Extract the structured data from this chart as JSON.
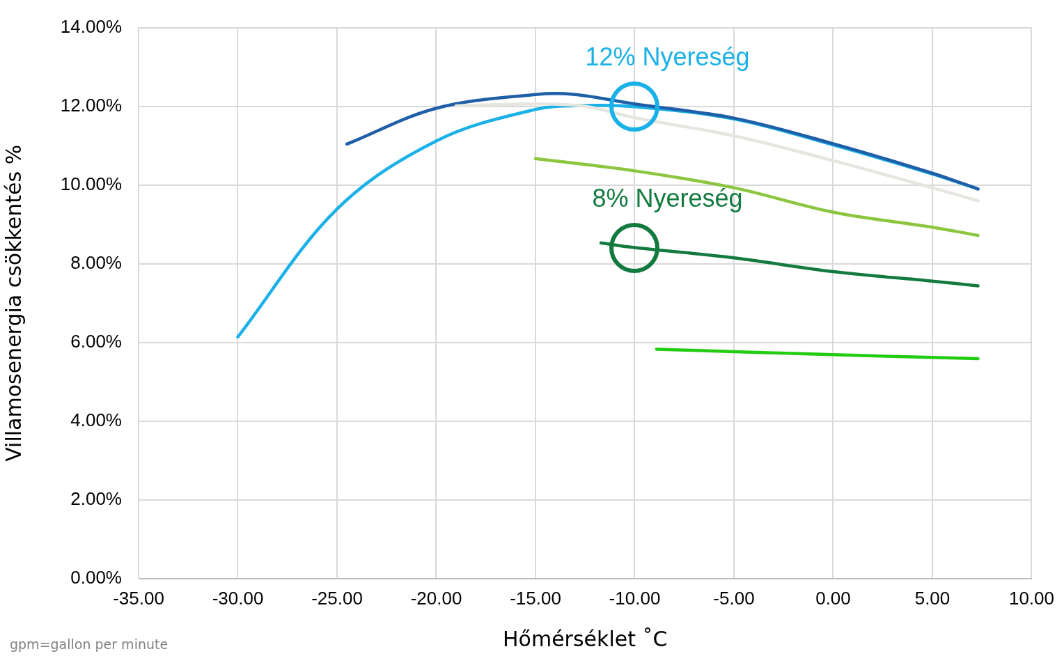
{
  "chart_data": {
    "type": "line",
    "xlabel": "Hőmérséklet ˚C",
    "ylabel": "Villamosenergia csökkentés %",
    "annotations": [
      {
        "text": "12% Nyereség",
        "x": -10,
        "y": 12
      },
      {
        "text": "8% Nyereség",
        "x": -10,
        "y": 8.41
      },
      "gpm=gallon per minute"
    ],
    "series": [
      {
        "color": "#e5e6df",
        "x": [
          -19,
          -15,
          -12.5,
          -10,
          -5,
          0,
          5,
          7.3
        ],
        "values": [
          12.01,
          12.06,
          12.0,
          11.71,
          11.25,
          10.62,
          9.93,
          9.6
        ]
      },
      {
        "color": "#1f5fa8",
        "x": [
          -24.5,
          -20,
          -15,
          -13,
          -10,
          -5,
          0,
          5,
          7.3
        ],
        "values": [
          11.04,
          11.95,
          12.3,
          12.3,
          12.06,
          11.7,
          11.05,
          10.3,
          9.9
        ]
      },
      {
        "color": "#1ab0e8",
        "x": [
          -30,
          -25,
          -20,
          -15,
          -12.5,
          -10,
          -5,
          0,
          5,
          7.3
        ],
        "values": [
          6.14,
          9.39,
          11.12,
          11.92,
          12.02,
          11.99,
          11.68,
          11.02,
          10.28,
          9.9
        ]
      },
      {
        "color": "#8cc63f",
        "x": [
          -15,
          -10,
          -5,
          0,
          5,
          7.3
        ],
        "values": [
          10.67,
          10.36,
          9.93,
          9.31,
          8.93,
          8.72
        ]
      },
      {
        "color": "#137a3f",
        "x": [
          -11.7,
          -10,
          -5,
          0,
          5,
          7.3
        ],
        "values": [
          8.53,
          8.41,
          8.15,
          7.8,
          7.56,
          7.44
        ]
      },
      {
        "color": "#22cc11",
        "x": [
          -8.9,
          0,
          7.3
        ],
        "values": [
          5.83,
          5.69,
          5.59
        ]
      }
    ],
    "xlim": [
      -35,
      10
    ],
    "xticks": [
      {
        "value": -35,
        "label": "-35.00"
      },
      {
        "value": -30,
        "label": "-30.00"
      },
      {
        "value": -25,
        "label": "-25.00"
      },
      {
        "value": -20,
        "label": "-20.00"
      },
      {
        "value": -15,
        "label": "-15.00"
      },
      {
        "value": -10,
        "label": "-10.00"
      },
      {
        "value": -5,
        "label": "-5.00"
      },
      {
        "value": 0,
        "label": "0.00"
      },
      {
        "value": 5,
        "label": "5.00"
      },
      {
        "value": 10,
        "label": "10.00"
      }
    ],
    "ylim": [
      0,
      14
    ],
    "yticks": [
      {
        "value": 0,
        "label": "0.00%"
      },
      {
        "value": 2,
        "label": "2.00%"
      },
      {
        "value": 4,
        "label": "4.00%"
      },
      {
        "value": 6,
        "label": "6.00%"
      },
      {
        "value": 8,
        "label": "8.00%"
      },
      {
        "value": 10,
        "label": "10.00%"
      },
      {
        "value": 12,
        "label": "12.00%"
      },
      {
        "value": 14,
        "label": "14.00%"
      }
    ],
    "grid": true,
    "legend": false,
    "marker": "none",
    "line_style": "solid"
  }
}
